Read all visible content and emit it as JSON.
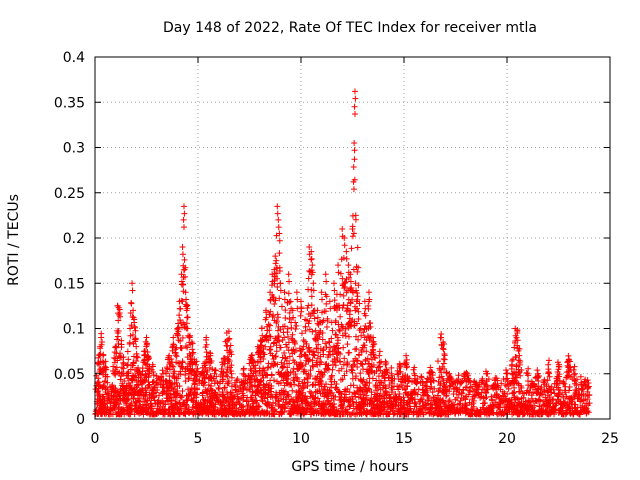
{
  "chart_data": {
    "type": "scatter",
    "title": "Day 148 of 2022, Rate Of TEC Index for receiver mtla",
    "xlabel": "GPS time / hours",
    "ylabel": "ROTI / TECUs",
    "xlim": [
      0,
      25
    ],
    "ylim": [
      0,
      0.4
    ],
    "xticks": [
      0,
      5,
      10,
      15,
      20,
      25
    ],
    "xtick_labels": [
      "0",
      "5",
      "10",
      "15",
      "20",
      "25"
    ],
    "yticks": [
      0,
      0.05,
      0.1,
      0.15,
      0.2,
      0.25,
      0.3,
      0.35,
      0.4
    ],
    "ytick_labels": [
      "0",
      "0.05",
      "0.1",
      "0.15",
      "0.2",
      "0.25",
      "0.3",
      "0.35",
      "0.4"
    ],
    "grid": true,
    "marker": "+",
    "color": "#ff0000",
    "series": [
      {
        "name": "ROTI",
        "points": [
          [
            0.1,
            0.03
          ],
          [
            0.15,
            0.045
          ],
          [
            0.2,
            0.06
          ],
          [
            0.25,
            0.08
          ],
          [
            0.3,
            0.09
          ],
          [
            0.4,
            0.07
          ],
          [
            0.5,
            0.055
          ],
          [
            0.6,
            0.04
          ],
          [
            0.8,
            0.03
          ],
          [
            1.0,
            0.025
          ],
          [
            1.1,
            0.125
          ],
          [
            1.15,
            0.123
          ],
          [
            1.2,
            0.121
          ],
          [
            1.4,
            0.05
          ],
          [
            1.6,
            0.06
          ],
          [
            1.7,
            0.1
          ],
          [
            1.8,
            0.15
          ],
          [
            1.85,
            0.12
          ],
          [
            1.9,
            0.11
          ],
          [
            2.0,
            0.08
          ],
          [
            2.2,
            0.05
          ],
          [
            2.4,
            0.07
          ],
          [
            2.5,
            0.09
          ],
          [
            2.8,
            0.06
          ],
          [
            3.0,
            0.04
          ],
          [
            3.3,
            0.05
          ],
          [
            3.6,
            0.07
          ],
          [
            3.8,
            0.09
          ],
          [
            4.0,
            0.1
          ],
          [
            4.1,
            0.13
          ],
          [
            4.2,
            0.16
          ],
          [
            4.25,
            0.19
          ],
          [
            4.3,
            0.22
          ],
          [
            4.32,
            0.235
          ],
          [
            4.35,
            0.165
          ],
          [
            4.4,
            0.14
          ],
          [
            4.45,
            0.12
          ],
          [
            4.5,
            0.1
          ],
          [
            4.6,
            0.09
          ],
          [
            4.7,
            0.085
          ],
          [
            4.9,
            0.06
          ],
          [
            5.2,
            0.05
          ],
          [
            5.4,
            0.09
          ],
          [
            5.6,
            0.07
          ],
          [
            5.8,
            0.05
          ],
          [
            6.2,
            0.06
          ],
          [
            6.4,
            0.095
          ],
          [
            6.5,
            0.097
          ],
          [
            6.8,
            0.04
          ],
          [
            7.2,
            0.05
          ],
          [
            7.6,
            0.07
          ],
          [
            7.9,
            0.08
          ],
          [
            8.1,
            0.1
          ],
          [
            8.3,
            0.12
          ],
          [
            8.5,
            0.14
          ],
          [
            8.6,
            0.16
          ],
          [
            8.7,
            0.165
          ],
          [
            8.75,
            0.18
          ],
          [
            8.8,
            0.175
          ],
          [
            8.85,
            0.235
          ],
          [
            8.9,
            0.22
          ],
          [
            8.95,
            0.205
          ],
          [
            9.0,
            0.15
          ],
          [
            9.2,
            0.14
          ],
          [
            9.4,
            0.16
          ],
          [
            9.5,
            0.13
          ],
          [
            9.6,
            0.12
          ],
          [
            9.8,
            0.14
          ],
          [
            10.0,
            0.13
          ],
          [
            10.2,
            0.11
          ],
          [
            10.4,
            0.19
          ],
          [
            10.5,
            0.185
          ],
          [
            10.55,
            0.17
          ],
          [
            10.6,
            0.15
          ],
          [
            10.8,
            0.12
          ],
          [
            11.0,
            0.14
          ],
          [
            11.2,
            0.16
          ],
          [
            11.4,
            0.13
          ],
          [
            11.6,
            0.15
          ],
          [
            11.8,
            0.17
          ],
          [
            12.0,
            0.21
          ],
          [
            12.1,
            0.2
          ],
          [
            12.2,
            0.185
          ],
          [
            12.3,
            0.17
          ],
          [
            12.4,
            0.16
          ],
          [
            12.5,
            0.21
          ],
          [
            12.55,
            0.262
          ],
          [
            12.58,
            0.305
          ],
          [
            12.6,
            0.345
          ],
          [
            12.62,
            0.362
          ],
          [
            12.65,
            0.15
          ],
          [
            12.7,
            0.13
          ],
          [
            12.9,
            0.1
          ],
          [
            13.1,
            0.13
          ],
          [
            13.3,
            0.14
          ],
          [
            13.5,
            0.09
          ],
          [
            13.8,
            0.07
          ],
          [
            14.1,
            0.06
          ],
          [
            14.4,
            0.05
          ],
          [
            14.8,
            0.06
          ],
          [
            15.1,
            0.07
          ],
          [
            15.5,
            0.05
          ],
          [
            15.9,
            0.04
          ],
          [
            16.3,
            0.05
          ],
          [
            16.8,
            0.09
          ],
          [
            16.9,
            0.085
          ],
          [
            17.2,
            0.05
          ],
          [
            17.6,
            0.04
          ],
          [
            18.0,
            0.05
          ],
          [
            18.5,
            0.04
          ],
          [
            19.0,
            0.05
          ],
          [
            19.5,
            0.045
          ],
          [
            20.0,
            0.05
          ],
          [
            20.4,
            0.1
          ],
          [
            20.5,
            0.095
          ],
          [
            20.6,
            0.07
          ],
          [
            21.0,
            0.05
          ],
          [
            21.5,
            0.05
          ],
          [
            22.0,
            0.06
          ],
          [
            22.5,
            0.055
          ],
          [
            23.0,
            0.065
          ],
          [
            23.3,
            0.05
          ],
          [
            23.6,
            0.04
          ],
          [
            23.9,
            0.03
          ]
        ],
        "baseline_band": [
          0.005,
          0.045
        ]
      }
    ]
  }
}
